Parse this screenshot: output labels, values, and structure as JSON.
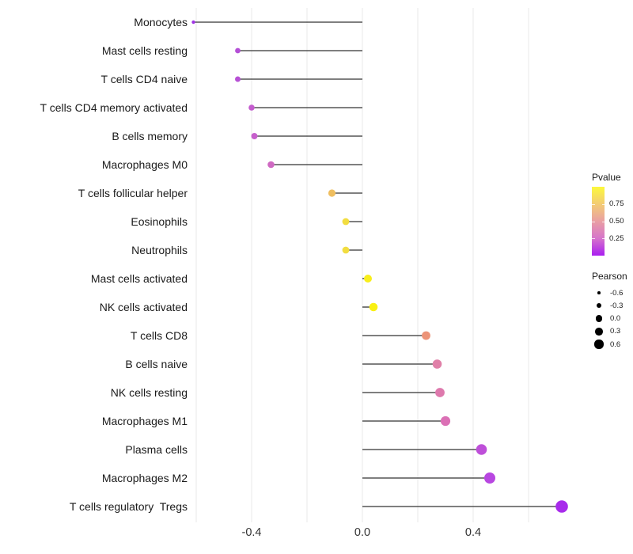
{
  "chart_data": {
    "type": "scatter",
    "subtype": "lollipop",
    "orientation": "horizontal",
    "title": "",
    "xlabel": "",
    "ylabel": "",
    "x_axis": {
      "ticks": [
        "-0.4",
        "0.0",
        "0.4"
      ],
      "tick_values": [
        -0.4,
        0.0,
        0.4
      ],
      "gridline_values": [
        -0.6,
        -0.4,
        -0.2,
        0.0,
        0.2,
        0.4,
        0.6
      ],
      "range": [
        -0.65,
        0.8
      ],
      "grid_on": true
    },
    "stem_color": "#333333",
    "gridline_color": "#e9e9e9",
    "axis_text_color": "#1a1a1a",
    "points": [
      {
        "label": "Monocytes",
        "pearson": -0.61,
        "pvalue_approx": 0.04,
        "dot_color": "#a135e6",
        "dot_radius": 2.2
      },
      {
        "label": "Mast cells resting",
        "pearson": -0.45,
        "pvalue_approx": 0.15,
        "dot_color": "#b44fd6",
        "dot_radius": 3.4
      },
      {
        "label": "T cells CD4 naive",
        "pearson": -0.45,
        "pvalue_approx": 0.16,
        "dot_color": "#b751d5",
        "dot_radius": 3.5
      },
      {
        "label": "T cells CD4 memory activated",
        "pearson": -0.4,
        "pvalue_approx": 0.2,
        "dot_color": "#c45cce",
        "dot_radius": 3.8
      },
      {
        "label": "B cells memory",
        "pearson": -0.39,
        "pvalue_approx": 0.21,
        "dot_color": "#c660cc",
        "dot_radius": 4.0
      },
      {
        "label": "Macrophages M0",
        "pearson": -0.33,
        "pvalue_approx": 0.26,
        "dot_color": "#cf69c2",
        "dot_radius": 4.3
      },
      {
        "label": "T cells follicular helper",
        "pearson": -0.11,
        "pvalue_approx": 0.62,
        "dot_color": "#efbe5f",
        "dot_radius": 4.6
      },
      {
        "label": "Eosinophils",
        "pearson": -0.06,
        "pvalue_approx": 0.78,
        "dot_color": "#f2dd40",
        "dot_radius": 4.4
      },
      {
        "label": "Neutrophils",
        "pearson": -0.06,
        "pvalue_approx": 0.78,
        "dot_color": "#f2dd40",
        "dot_radius": 4.4
      },
      {
        "label": "Mast cells activated",
        "pearson": 0.02,
        "pvalue_approx": 0.9,
        "dot_color": "#f8ee1c",
        "dot_radius": 5.0
      },
      {
        "label": "NK cells activated",
        "pearson": 0.04,
        "pvalue_approx": 0.93,
        "dot_color": "#f9f013",
        "dot_radius": 5.3
      },
      {
        "label": "T cells CD8",
        "pearson": 0.23,
        "pvalue_approx": 0.48,
        "dot_color": "#ec9378",
        "dot_radius": 5.4
      },
      {
        "label": "B cells naive",
        "pearson": 0.27,
        "pvalue_approx": 0.38,
        "dot_color": "#e080a8",
        "dot_radius": 5.8
      },
      {
        "label": "NK cells resting",
        "pearson": 0.28,
        "pvalue_approx": 0.36,
        "dot_color": "#de79ad",
        "dot_radius": 5.9
      },
      {
        "label": "Macrophages M1",
        "pearson": 0.3,
        "pvalue_approx": 0.33,
        "dot_color": "#db70b5",
        "dot_radius": 6.1
      },
      {
        "label": "Plasma cells",
        "pearson": 0.43,
        "pvalue_approx": 0.13,
        "dot_color": "#be4fd9",
        "dot_radius": 6.8
      },
      {
        "label": "Macrophages M2",
        "pearson": 0.46,
        "pvalue_approx": 0.09,
        "dot_color": "#b847e1",
        "dot_radius": 7.0
      },
      {
        "label": "T cells regulatory  Tregs",
        "pearson": 0.72,
        "pvalue_approx": 0.01,
        "dot_color": "#a82beb",
        "dot_radius": 7.8
      }
    ],
    "legends": {
      "position": "right",
      "pvalue": {
        "title": "Pvalue",
        "tick_labels": [
          "0.75",
          "0.50",
          "0.25"
        ],
        "tick_fractions_from_top": [
          0.25,
          0.5,
          0.75
        ],
        "gradient_top_to_bottom": [
          "#fcf83c",
          "#f3cc74",
          "#e99fa3",
          "#d674cb",
          "#a91ef0"
        ]
      },
      "pearson": {
        "title": "Pearson",
        "dot_color": "#000000",
        "entries": [
          {
            "label": "-0.6",
            "radius": 1.8
          },
          {
            "label": "-0.3",
            "radius": 3.2
          },
          {
            "label": "0.0",
            "radius": 4.2
          },
          {
            "label": "0.3",
            "radius": 4.9
          },
          {
            "label": "0.6",
            "radius": 5.6
          }
        ]
      }
    }
  }
}
